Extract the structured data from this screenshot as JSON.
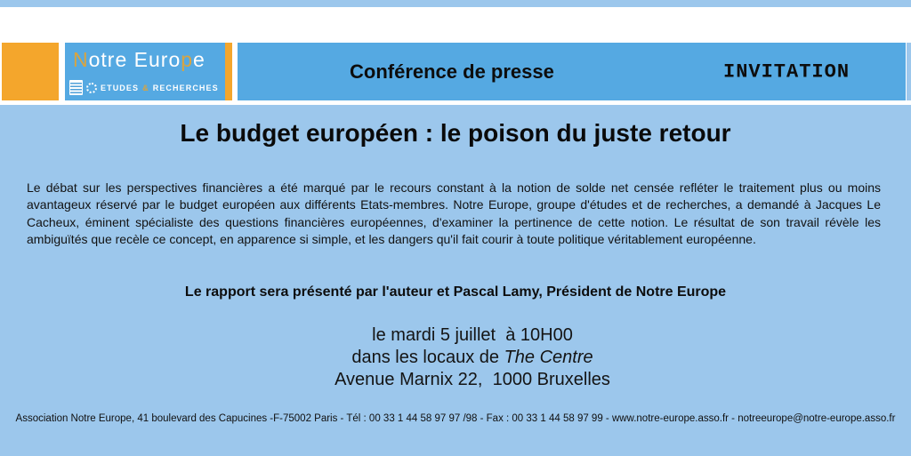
{
  "theme": {
    "light_blue": "#9cc7ec",
    "band_blue": "#55a9e2",
    "orange": "#f4a62c",
    "logo_gold": "#d9a43f",
    "text_color": "#141414"
  },
  "logo": {
    "wordmark_parts": [
      {
        "text": "N",
        "accent": true
      },
      {
        "text": "otre Euro",
        "accent": false
      },
      {
        "text": "p",
        "accent": true
      },
      {
        "text": "e",
        "accent": false
      }
    ],
    "tagline": {
      "etudes": "ETUDES",
      "ampersand": "&",
      "recherches": "RECHERCHES"
    },
    "icons": [
      "document-lines-icon",
      "eu-stars-circle-icon"
    ]
  },
  "header": {
    "conference_label": "Conférence de presse",
    "invitation_label": "INVITATION"
  },
  "main": {
    "title": "Le budget européen : le poison du juste retour",
    "paragraph": "Le débat sur les perspectives financières a été marqué par le recours constant à la notion de solde net censée refléter le traitement plus ou moins avantageux réservé par le budget européen aux différents Etats-membres. Notre Europe, groupe d'études et de recherches, a demandé à Jacques Le Cacheux, éminent spécialiste des questions financières européennes, d'examiner la pertinence de cette notion. Le résultat de son travail révèle les ambiguïtés que recèle ce concept, en apparence si simple, et les dangers qu'il fait courir à toute politique véritablement européenne.",
    "presenter_line": "Le rapport sera présenté par l'auteur et Pascal Lamy, Président de Notre Europe",
    "event": {
      "datetime": "le mardi 5 juillet  à 10H00",
      "venue_prefix": "dans les locaux de ",
      "venue_name": "The Centre",
      "address": "Avenue Marnix 22,  1000 Bruxelles"
    }
  },
  "footer": {
    "contact_line": "Association Notre Europe, 41 boulevard des Capucines -F-75002 Paris - Tél : 00 33 1 44 58 97 97 /98 - Fax : 00 33 1 44 58 97 99 - www.notre-europe.asso.fr - notreeurope@notre-europe.asso.fr"
  }
}
